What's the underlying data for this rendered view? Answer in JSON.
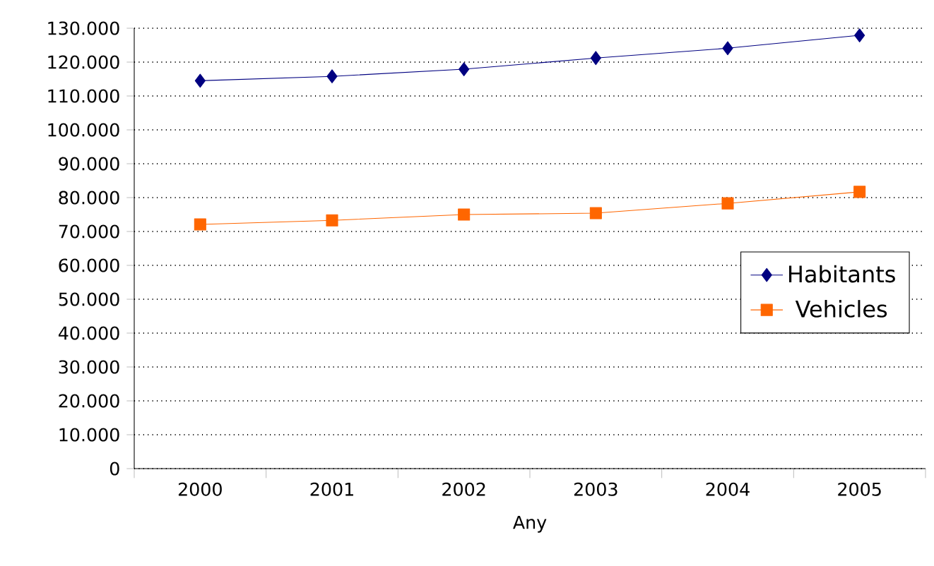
{
  "chart_data": {
    "type": "line",
    "xlabel": "Any",
    "categories": [
      "2000",
      "2001",
      "2002",
      "2003",
      "2004",
      "2005"
    ],
    "series": [
      {
        "name": "Habitants",
        "color": "#000080",
        "marker": "diamond",
        "values": [
          114500,
          115800,
          117900,
          121200,
          124100,
          127900
        ]
      },
      {
        "name": "Vehicles",
        "color": "#ff6600",
        "marker": "square",
        "values": [
          72100,
          73300,
          75000,
          75400,
          78300,
          81700
        ]
      }
    ],
    "ylim": [
      0,
      130000
    ],
    "yticks": [
      {
        "value": 0,
        "label": "0"
      },
      {
        "value": 10000,
        "label": "10.000"
      },
      {
        "value": 20000,
        "label": "20.000"
      },
      {
        "value": 30000,
        "label": "30.000"
      },
      {
        "value": 40000,
        "label": "40.000"
      },
      {
        "value": 50000,
        "label": "50.000"
      },
      {
        "value": 60000,
        "label": "60.000"
      },
      {
        "value": 70000,
        "label": "70.000"
      },
      {
        "value": 80000,
        "label": "80.000"
      },
      {
        "value": 90000,
        "label": "90.000"
      },
      {
        "value": 100000,
        "label": "100.000"
      },
      {
        "value": 110000,
        "label": "110.000"
      },
      {
        "value": 120000,
        "label": "120.000"
      },
      {
        "value": 130000,
        "label": "130.000"
      }
    ],
    "grid": "y",
    "legend": "right",
    "line_style": "solid"
  }
}
